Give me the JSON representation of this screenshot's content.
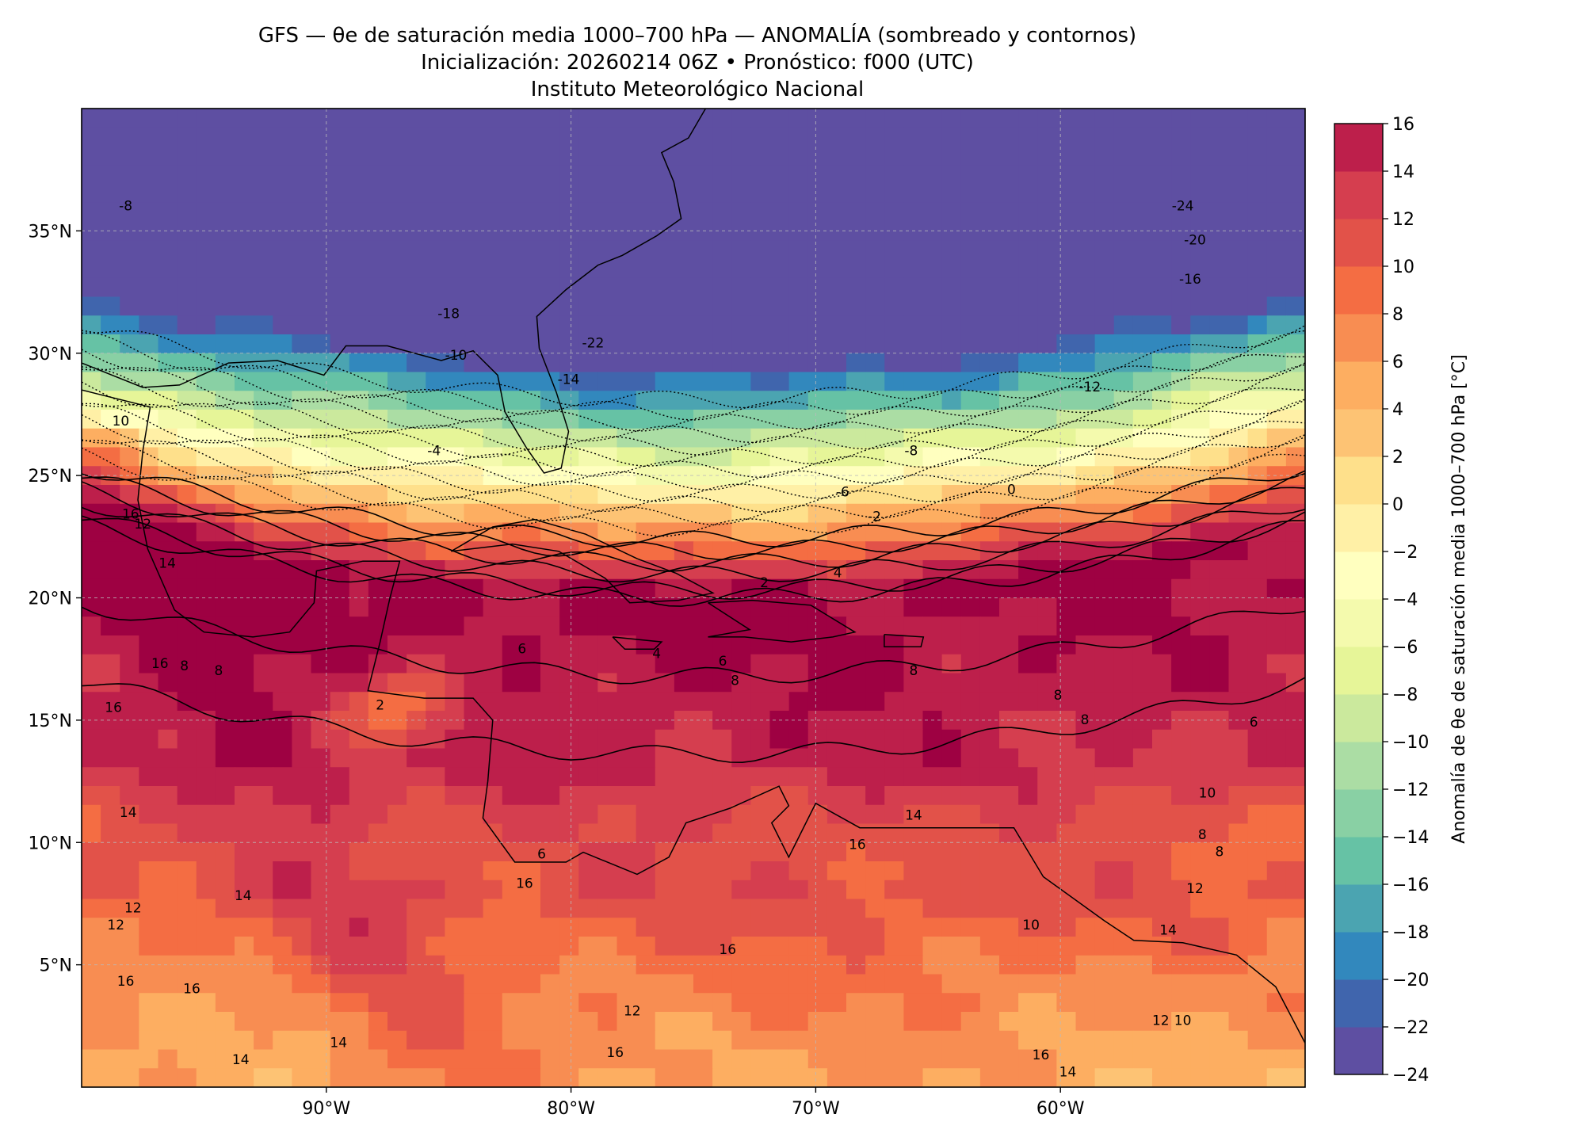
{
  "title": {
    "line1": "GFS — θe de saturación media 1000–700 hPa — ANOMALÍA (sombreado y contornos)",
    "line2": "Inicialización: 20260214 06Z   •   Pronóstico: f000 (UTC)",
    "line3": "Instituto Meteorológico Nacional"
  },
  "map": {
    "lon_range": [
      -100,
      -50
    ],
    "lat_range": [
      0,
      40
    ],
    "lon_ticks": [
      {
        "value": -90,
        "label": "90°W"
      },
      {
        "value": -80,
        "label": "80°W"
      },
      {
        "value": -70,
        "label": "70°W"
      },
      {
        "value": -60,
        "label": "60°W"
      }
    ],
    "lat_ticks": [
      {
        "value": 35,
        "label": "35°N"
      },
      {
        "value": 30,
        "label": "30°N"
      },
      {
        "value": 25,
        "label": "25°N"
      },
      {
        "value": 20,
        "label": "20°N"
      },
      {
        "value": 15,
        "label": "15°N"
      },
      {
        "value": 10,
        "label": "10°N"
      },
      {
        "value": 5,
        "label": "5°N"
      }
    ],
    "grid": true,
    "coastlines": true
  },
  "colorbar": {
    "label": "Anomalía de θe de saturación media 1000–700 hPa [°C]",
    "range": [
      -24,
      16
    ],
    "step": 2,
    "tick_labels": [
      "16",
      "14",
      "12",
      "10",
      "8",
      "6",
      "4",
      "2",
      "0",
      "−2",
      "−4",
      "−6",
      "−8",
      "−10",
      "−12",
      "−14",
      "−16",
      "−18",
      "−20",
      "−22",
      "−24"
    ],
    "colors": [
      "#5e4fa2",
      "#4065ad",
      "#3288bd",
      "#4ba4b1",
      "#66c2a5",
      "#89d0a4",
      "#abdda4",
      "#cbe99d",
      "#e6f598",
      "#f4faad",
      "#ffffbf",
      "#fff0a6",
      "#fee08b",
      "#fdc374",
      "#fdae61",
      "#f88d52",
      "#f46d43",
      "#e25249",
      "#d53e4f",
      "#bd1f4b",
      "#9e0142"
    ]
  },
  "contour_labels": [
    {
      "text": "-8",
      "lon": -98.2,
      "lat": 36.0
    },
    {
      "text": "-18",
      "lon": -85.0,
      "lat": 31.6
    },
    {
      "text": "-22",
      "lon": -79.1,
      "lat": 30.4
    },
    {
      "text": "-10",
      "lon": -84.7,
      "lat": 29.9
    },
    {
      "text": "-14",
      "lon": -80.1,
      "lat": 28.9
    },
    {
      "text": "-4",
      "lon": -85.6,
      "lat": 26.0
    },
    {
      "text": "-24",
      "lon": -55.0,
      "lat": 36.0
    },
    {
      "text": "-20",
      "lon": -54.5,
      "lat": 34.6
    },
    {
      "text": "-16",
      "lon": -54.7,
      "lat": 33.0
    },
    {
      "text": "-12",
      "lon": -58.8,
      "lat": 28.6
    },
    {
      "text": "-8",
      "lon": -66.1,
      "lat": 26.0
    },
    {
      "text": "-6",
      "lon": -68.9,
      "lat": 24.3
    },
    {
      "text": "0",
      "lon": -62.0,
      "lat": 24.4
    },
    {
      "text": "-2",
      "lon": -67.6,
      "lat": 23.3
    },
    {
      "text": "2",
      "lon": -72.1,
      "lat": 20.6
    },
    {
      "text": "4",
      "lon": -69.1,
      "lat": 21.0
    },
    {
      "text": "6",
      "lon": -82.0,
      "lat": 17.9
    },
    {
      "text": "4",
      "lon": -76.5,
      "lat": 17.7
    },
    {
      "text": "6",
      "lon": -73.8,
      "lat": 17.4
    },
    {
      "text": "8",
      "lon": -73.3,
      "lat": 16.6
    },
    {
      "text": "8",
      "lon": -66.0,
      "lat": 17.0
    },
    {
      "text": "8",
      "lon": -60.1,
      "lat": 16.0
    },
    {
      "text": "8",
      "lon": -59.0,
      "lat": 15.0
    },
    {
      "text": "6",
      "lon": -52.1,
      "lat": 14.9
    },
    {
      "text": "10",
      "lon": -54.0,
      "lat": 12.0
    },
    {
      "text": "8",
      "lon": -54.2,
      "lat": 10.3
    },
    {
      "text": "8",
      "lon": -53.5,
      "lat": 9.6
    },
    {
      "text": "16",
      "lon": -98.0,
      "lat": 23.4
    },
    {
      "text": "12",
      "lon": -97.5,
      "lat": 23.0
    },
    {
      "text": "14",
      "lon": -96.5,
      "lat": 21.4
    },
    {
      "text": "10",
      "lon": -98.4,
      "lat": 27.2
    },
    {
      "text": "16",
      "lon": -96.8,
      "lat": 17.3
    },
    {
      "text": "8",
      "lon": -95.8,
      "lat": 17.2
    },
    {
      "text": "8",
      "lon": -94.4,
      "lat": 17.0
    },
    {
      "text": "2",
      "lon": -87.8,
      "lat": 15.6
    },
    {
      "text": "16",
      "lon": -98.7,
      "lat": 15.5
    },
    {
      "text": "14",
      "lon": -98.1,
      "lat": 11.2
    },
    {
      "text": "12",
      "lon": -98.6,
      "lat": 6.6
    },
    {
      "text": "12",
      "lon": -97.9,
      "lat": 7.3
    },
    {
      "text": "14",
      "lon": -93.4,
      "lat": 7.8
    },
    {
      "text": "16",
      "lon": -98.2,
      "lat": 4.3
    },
    {
      "text": "16",
      "lon": -95.5,
      "lat": 4.0
    },
    {
      "text": "14",
      "lon": -93.5,
      "lat": 1.1
    },
    {
      "text": "14",
      "lon": -89.5,
      "lat": 1.8
    },
    {
      "text": "6",
      "lon": -81.2,
      "lat": 9.5
    },
    {
      "text": "16",
      "lon": -81.9,
      "lat": 8.3
    },
    {
      "text": "16",
      "lon": -73.6,
      "lat": 5.6
    },
    {
      "text": "12",
      "lon": -77.5,
      "lat": 3.1
    },
    {
      "text": "16",
      "lon": -78.2,
      "lat": 1.4
    },
    {
      "text": "14",
      "lon": -66.0,
      "lat": 11.1
    },
    {
      "text": "16",
      "lon": -68.3,
      "lat": 9.9
    },
    {
      "text": "10",
      "lon": -61.2,
      "lat": 6.6
    },
    {
      "text": "12",
      "lon": -54.5,
      "lat": 8.1
    },
    {
      "text": "14",
      "lon": -55.6,
      "lat": 6.4
    },
    {
      "text": "12",
      "lon": -55.9,
      "lat": 2.7
    },
    {
      "text": "10",
      "lon": -55.0,
      "lat": 2.7
    },
    {
      "text": "16",
      "lon": -60.8,
      "lat": 1.3
    },
    {
      "text": "14",
      "lon": -59.7,
      "lat": 0.6
    }
  ]
}
